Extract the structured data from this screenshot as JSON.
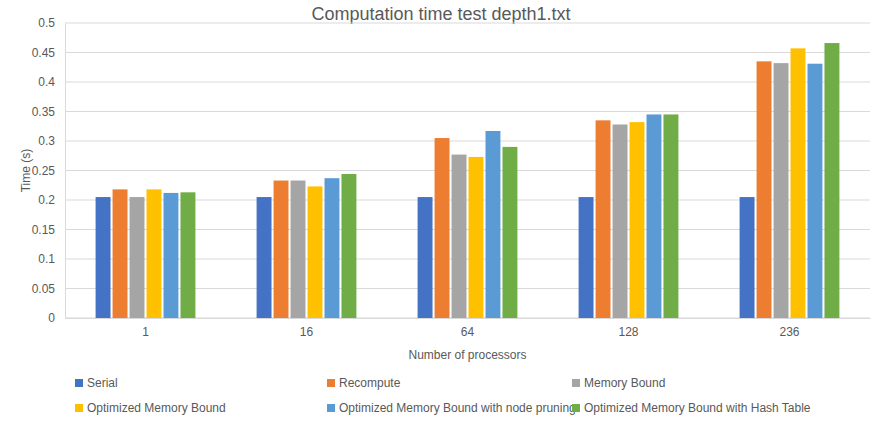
{
  "chart_data": {
    "type": "bar",
    "title": "Computation time test depth1.txt",
    "x_label": "Number of processors",
    "y_label": "Time (s)",
    "categories": [
      "1",
      "16",
      "64",
      "128",
      "236"
    ],
    "series": [
      {
        "name": "Serial",
        "color": "#4472c4",
        "values": [
          0.205,
          0.205,
          0.205,
          0.205,
          0.205
        ]
      },
      {
        "name": "Recompute",
        "color": "#ed7d31",
        "values": [
          0.218,
          0.233,
          0.305,
          0.335,
          0.435
        ]
      },
      {
        "name": "Memory Bound",
        "color": "#a5a5a5",
        "values": [
          0.205,
          0.233,
          0.277,
          0.328,
          0.432
        ]
      },
      {
        "name": "Optimized Memory Bound",
        "color": "#ffc000",
        "values": [
          0.218,
          0.223,
          0.273,
          0.332,
          0.457
        ]
      },
      {
        "name": "Optimized Memory Bound with node pruning",
        "color": "#5b9bd5",
        "values": [
          0.212,
          0.237,
          0.317,
          0.345,
          0.431
        ]
      },
      {
        "name": "Optimized Memory Bound with Hash Table",
        "color": "#70ad47",
        "values": [
          0.213,
          0.244,
          0.29,
          0.345,
          0.466
        ]
      }
    ],
    "ylim": [
      0,
      0.5
    ],
    "yticks": [
      0,
      0.05,
      0.1,
      0.15,
      0.2,
      0.25,
      0.3,
      0.35,
      0.4,
      0.45,
      0.5
    ],
    "grid": true,
    "legend": "bottom"
  }
}
